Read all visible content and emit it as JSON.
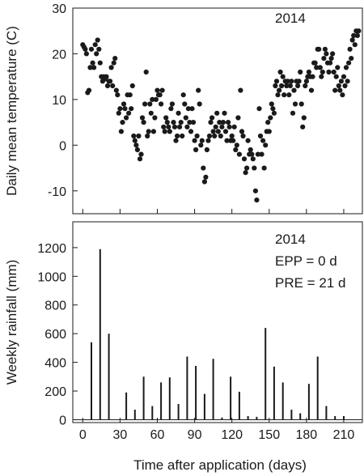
{
  "chart_data": [
    {
      "type": "scatter",
      "annotation": "2014",
      "ylabel": "Daily mean temperature (C)",
      "ylim": [
        -15,
        30
      ],
      "xlim": [
        -8,
        225
      ],
      "yticks": [
        -10,
        0,
        10,
        20,
        30
      ],
      "xticks": [
        0,
        30,
        60,
        90,
        120,
        150,
        180,
        210
      ],
      "grid": false,
      "series": [
        {
          "points": [
            [
              0,
              22
            ],
            [
              1,
              21.5
            ],
            [
              2,
              21
            ],
            [
              3,
              20
            ],
            [
              4,
              11.5
            ],
            [
              5,
              12
            ],
            [
              6,
              17
            ],
            [
              7,
              21
            ],
            [
              8,
              18
            ],
            [
              9,
              17
            ],
            [
              10,
              22
            ],
            [
              11,
              20
            ],
            [
              12,
              23
            ],
            [
              13,
              21
            ],
            [
              14,
              18
            ],
            [
              15,
              15
            ],
            [
              16,
              14
            ],
            [
              17,
              15
            ],
            [
              18,
              14.5
            ],
            [
              19,
              15
            ],
            [
              20,
              13
            ],
            [
              21,
              14
            ],
            [
              22,
              14
            ],
            [
              23,
              17
            ],
            [
              24,
              13
            ],
            [
              25,
              18
            ],
            [
              26,
              19
            ],
            [
              27,
              12
            ],
            [
              28,
              11
            ],
            [
              29,
              7
            ],
            [
              30,
              8
            ],
            [
              31,
              3
            ],
            [
              32,
              5
            ],
            [
              33,
              9
            ],
            [
              34,
              8
            ],
            [
              35,
              6
            ],
            [
              36,
              11
            ],
            [
              37,
              7
            ],
            [
              38,
              11
            ],
            [
              39,
              8
            ],
            [
              40,
              13
            ],
            [
              41,
              2
            ],
            [
              42,
              1
            ],
            [
              43,
              0
            ],
            [
              44,
              -1
            ],
            [
              45,
              2
            ],
            [
              46,
              -3
            ],
            [
              47,
              -2
            ],
            [
              48,
              6
            ],
            [
              49,
              5
            ],
            [
              50,
              9
            ],
            [
              51,
              16
            ],
            [
              52,
              2
            ],
            [
              53,
              3
            ],
            [
              54,
              9
            ],
            [
              55,
              7
            ],
            [
              56,
              10
            ],
            [
              57,
              3
            ],
            [
              58,
              6
            ],
            [
              59,
              10
            ],
            [
              60,
              12
            ],
            [
              61,
              11
            ],
            [
              62,
              11
            ],
            [
              63,
              9
            ],
            [
              64,
              12
            ],
            [
              65,
              4
            ],
            [
              66,
              3
            ],
            [
              67,
              6
            ],
            [
              68,
              5
            ],
            [
              69,
              4
            ],
            [
              70,
              3
            ],
            [
              71,
              8
            ],
            [
              72,
              9
            ],
            [
              73,
              5
            ],
            [
              74,
              4
            ],
            [
              75,
              1
            ],
            [
              76,
              2
            ],
            [
              77,
              7
            ],
            [
              78,
              4
            ],
            [
              79,
              5
            ],
            [
              80,
              2
            ],
            [
              81,
              11
            ],
            [
              82,
              9
            ],
            [
              83,
              6
            ],
            [
              84,
              4
            ],
            [
              85,
              8
            ],
            [
              86,
              5
            ],
            [
              87,
              3
            ],
            [
              88,
              8
            ],
            [
              89,
              5
            ],
            [
              90,
              1
            ],
            [
              91,
              -1
            ],
            [
              92,
              2
            ],
            [
              93,
              12
            ],
            [
              94,
              9
            ],
            [
              95,
              0
            ],
            [
              96,
              1
            ],
            [
              97,
              -5
            ],
            [
              98,
              -8
            ],
            [
              99,
              -7
            ],
            [
              100,
              -1
            ],
            [
              101,
              1
            ],
            [
              102,
              2
            ],
            [
              103,
              5
            ],
            [
              104,
              6
            ],
            [
              105,
              3
            ],
            [
              106,
              2
            ],
            [
              107,
              4
            ],
            [
              108,
              7
            ],
            [
              109,
              3
            ],
            [
              110,
              5
            ],
            [
              111,
              2
            ],
            [
              112,
              4
            ],
            [
              113,
              5
            ],
            [
              114,
              7
            ],
            [
              115,
              3
            ],
            [
              116,
              1
            ],
            [
              117,
              5
            ],
            [
              118,
              4
            ],
            [
              119,
              1
            ],
            [
              120,
              2
            ],
            [
              121,
              1
            ],
            [
              122,
              4
            ],
            [
              123,
              -1
            ],
            [
              124,
              0
            ],
            [
              125,
              6
            ],
            [
              126,
              -2
            ],
            [
              127,
              12
            ],
            [
              128,
              3
            ],
            [
              129,
              2
            ],
            [
              130,
              -3
            ],
            [
              131,
              -6
            ],
            [
              132,
              -5
            ],
            [
              133,
              1
            ],
            [
              134,
              -2
            ],
            [
              135,
              -1
            ],
            [
              136,
              -2
            ],
            [
              137,
              -3
            ],
            [
              138,
              -5
            ],
            [
              139,
              -10
            ],
            [
              140,
              -12
            ],
            [
              141,
              -2
            ],
            [
              142,
              8
            ],
            [
              143,
              2
            ],
            [
              144,
              -2
            ],
            [
              145,
              1
            ],
            [
              146,
              -5
            ],
            [
              147,
              0
            ],
            [
              148,
              3
            ],
            [
              149,
              5
            ],
            [
              150,
              3
            ],
            [
              151,
              6
            ],
            [
              152,
              9
            ],
            [
              153,
              8
            ],
            [
              154,
              7
            ],
            [
              155,
              13
            ],
            [
              156,
              14
            ],
            [
              157,
              11
            ],
            [
              158,
              12
            ],
            [
              159,
              16
            ],
            [
              160,
              13
            ],
            [
              161,
              15
            ],
            [
              162,
              11
            ],
            [
              163,
              14
            ],
            [
              164,
              13
            ],
            [
              165,
              14
            ],
            [
              166,
              11
            ],
            [
              167,
              13
            ],
            [
              168,
              14
            ],
            [
              169,
              7
            ],
            [
              170,
              12
            ],
            [
              171,
              9
            ],
            [
              172,
              14
            ],
            [
              173,
              13
            ],
            [
              174,
              14
            ],
            [
              175,
              16
            ],
            [
              176,
              9
            ],
            [
              177,
              4
            ],
            [
              178,
              6
            ],
            [
              179,
              13
            ],
            [
              180,
              14
            ],
            [
              181,
              15
            ],
            [
              182,
              16
            ],
            [
              183,
              15
            ],
            [
              184,
              12
            ],
            [
              185,
              15
            ],
            [
              186,
              18
            ],
            [
              187,
              18
            ],
            [
              188,
              17
            ],
            [
              189,
              21
            ],
            [
              190,
              21
            ],
            [
              191,
              17
            ],
            [
              192,
              15
            ],
            [
              193,
              16
            ],
            [
              194,
              19
            ],
            [
              195,
              21
            ],
            [
              196,
              20
            ],
            [
              197,
              18
            ],
            [
              198,
              16
            ],
            [
              199,
              18
            ],
            [
              200,
              19
            ],
            [
              201,
              20
            ],
            [
              202,
              16
            ],
            [
              203,
              12
            ],
            [
              204,
              15
            ],
            [
              205,
              17
            ],
            [
              206,
              13
            ],
            [
              207,
              12
            ],
            [
              208,
              14
            ],
            [
              209,
              11
            ],
            [
              210,
              15
            ],
            [
              211,
              13
            ],
            [
              212,
              17
            ],
            [
              213,
              14
            ],
            [
              214,
              18
            ],
            [
              215,
              21
            ],
            [
              216,
              19
            ],
            [
              217,
              23
            ],
            [
              218,
              24
            ],
            [
              219,
              22
            ],
            [
              220,
              25
            ],
            [
              221,
              24
            ],
            [
              222,
              25
            ]
          ]
        }
      ]
    },
    {
      "type": "bar",
      "annotation_lines": [
        "2014",
        "EPP = 0 d",
        "PRE = 21 d"
      ],
      "xlabel": "Time after application (days)",
      "ylabel": "Weekly rainfall (mm)",
      "ylim": [
        -20,
        1380
      ],
      "xlim": [
        -8,
        225
      ],
      "yticks": [
        0,
        200,
        400,
        600,
        800,
        1000,
        1200
      ],
      "xticks": [
        0,
        30,
        60,
        90,
        120,
        150,
        180,
        210
      ],
      "grid": false,
      "x": [
        7,
        14,
        21,
        28,
        35,
        42,
        49,
        56,
        63,
        70,
        77,
        84,
        91,
        98,
        105,
        112,
        119,
        126,
        133,
        140,
        147,
        154,
        161,
        168,
        175,
        182,
        189,
        196,
        203,
        210
      ],
      "values": [
        540,
        1190,
        600,
        0,
        190,
        70,
        300,
        95,
        260,
        295,
        110,
        440,
        375,
        180,
        425,
        15,
        300,
        195,
        25,
        20,
        640,
        370,
        260,
        70,
        45,
        250,
        440,
        95,
        25,
        25
      ]
    }
  ]
}
